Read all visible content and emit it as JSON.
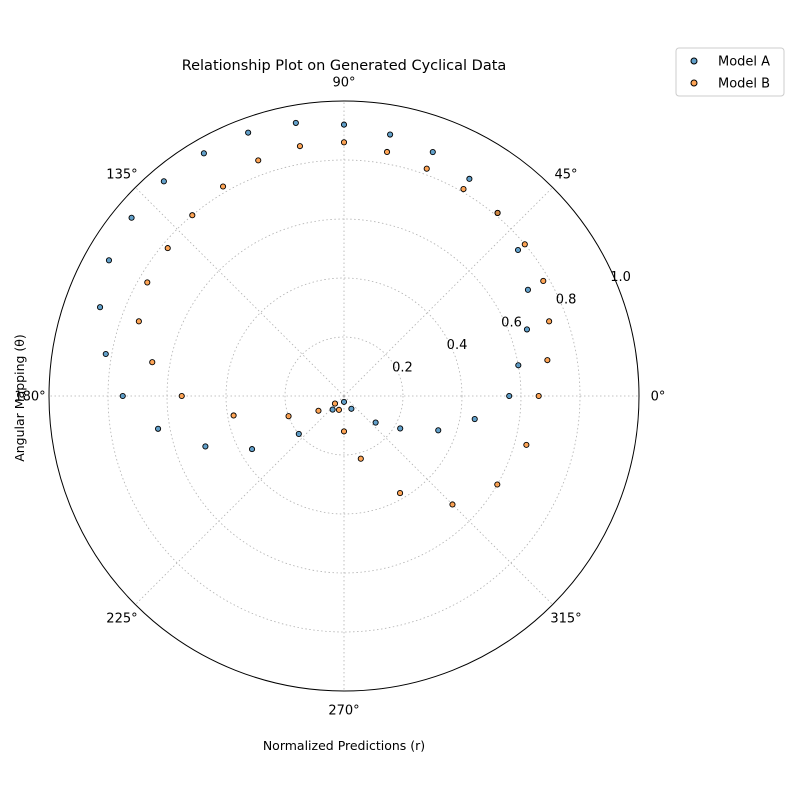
{
  "chart_data": {
    "type": "scatter",
    "coordinate_system": "polar",
    "title": "Relationship Plot on Generated Cyclical Data",
    "xlabel": "Normalized Predictions (r)",
    "ylabel": "Angular Mapping (θ)",
    "theta_ticks": [
      {
        "deg": 0,
        "label": "0°"
      },
      {
        "deg": 45,
        "label": "45°"
      },
      {
        "deg": 90,
        "label": "90°"
      },
      {
        "deg": 135,
        "label": "135°"
      },
      {
        "deg": 180,
        "label": "180°"
      },
      {
        "deg": 225,
        "label": "225°"
      },
      {
        "deg": 270,
        "label": "270°"
      },
      {
        "deg": 315,
        "label": "315°"
      }
    ],
    "r_ticks": [
      {
        "r": 0.2,
        "label": "0.2"
      },
      {
        "r": 0.4,
        "label": "0.4"
      },
      {
        "r": 0.6,
        "label": "0.6"
      },
      {
        "r": 0.8,
        "label": "0.8"
      },
      {
        "r": 1.0,
        "label": "1.0"
      }
    ],
    "rlim": [
      0,
      1.0
    ],
    "grid": true,
    "legend_position": "top-right outside",
    "series": [
      {
        "name": "Model A",
        "color": "#1f77b4",
        "points": [
          {
            "theta": 0,
            "r": 0.56
          },
          {
            "theta": 10,
            "r": 0.6
          },
          {
            "theta": 20,
            "r": 0.66
          },
          {
            "theta": 30,
            "r": 0.72
          },
          {
            "theta": 40,
            "r": 0.77
          },
          {
            "theta": 50,
            "r": 0.81
          },
          {
            "theta": 60,
            "r": 0.85
          },
          {
            "theta": 70,
            "r": 0.88
          },
          {
            "theta": 80,
            "r": 0.9
          },
          {
            "theta": 90,
            "r": 0.92
          },
          {
            "theta": 100,
            "r": 0.94
          },
          {
            "theta": 110,
            "r": 0.95
          },
          {
            "theta": 120,
            "r": 0.95
          },
          {
            "theta": 130,
            "r": 0.95
          },
          {
            "theta": 140,
            "r": 0.94
          },
          {
            "theta": 150,
            "r": 0.92
          },
          {
            "theta": 160,
            "r": 0.88
          },
          {
            "theta": 170,
            "r": 0.82
          },
          {
            "theta": 180,
            "r": 0.75
          },
          {
            "theta": 190,
            "r": 0.64
          },
          {
            "theta": 200,
            "r": 0.5
          },
          {
            "theta": 210,
            "r": 0.36
          },
          {
            "theta": 220,
            "r": 0.2
          },
          {
            "theta": 230,
            "r": 0.06
          },
          {
            "theta": 270,
            "r": 0.02
          },
          {
            "theta": 300,
            "r": 0.05
          },
          {
            "theta": 320,
            "r": 0.14
          },
          {
            "theta": 330,
            "r": 0.22
          },
          {
            "theta": 340,
            "r": 0.34
          },
          {
            "theta": 350,
            "r": 0.45
          }
        ]
      },
      {
        "name": "Model B",
        "color": "#ff7f0e",
        "points": [
          {
            "theta": 0,
            "r": 0.66
          },
          {
            "theta": 10,
            "r": 0.7
          },
          {
            "theta": 20,
            "r": 0.74
          },
          {
            "theta": 30,
            "r": 0.78
          },
          {
            "theta": 40,
            "r": 0.8
          },
          {
            "theta": 50,
            "r": 0.81
          },
          {
            "theta": 60,
            "r": 0.81
          },
          {
            "theta": 70,
            "r": 0.82
          },
          {
            "theta": 80,
            "r": 0.84
          },
          {
            "theta": 90,
            "r": 0.86
          },
          {
            "theta": 100,
            "r": 0.86
          },
          {
            "theta": 110,
            "r": 0.85
          },
          {
            "theta": 120,
            "r": 0.82
          },
          {
            "theta": 130,
            "r": 0.8
          },
          {
            "theta": 140,
            "r": 0.78
          },
          {
            "theta": 150,
            "r": 0.77
          },
          {
            "theta": 160,
            "r": 0.74
          },
          {
            "theta": 170,
            "r": 0.66
          },
          {
            "theta": 180,
            "r": 0.55
          },
          {
            "theta": 190,
            "r": 0.38
          },
          {
            "theta": 200,
            "r": 0.2
          },
          {
            "theta": 210,
            "r": 0.1
          },
          {
            "theta": 220,
            "r": 0.04
          },
          {
            "theta": 250,
            "r": 0.05
          },
          {
            "theta": 270,
            "r": 0.12
          },
          {
            "theta": 285,
            "r": 0.22
          },
          {
            "theta": 300,
            "r": 0.38
          },
          {
            "theta": 315,
            "r": 0.52
          },
          {
            "theta": 330,
            "r": 0.6
          },
          {
            "theta": 345,
            "r": 0.64
          }
        ]
      }
    ]
  }
}
